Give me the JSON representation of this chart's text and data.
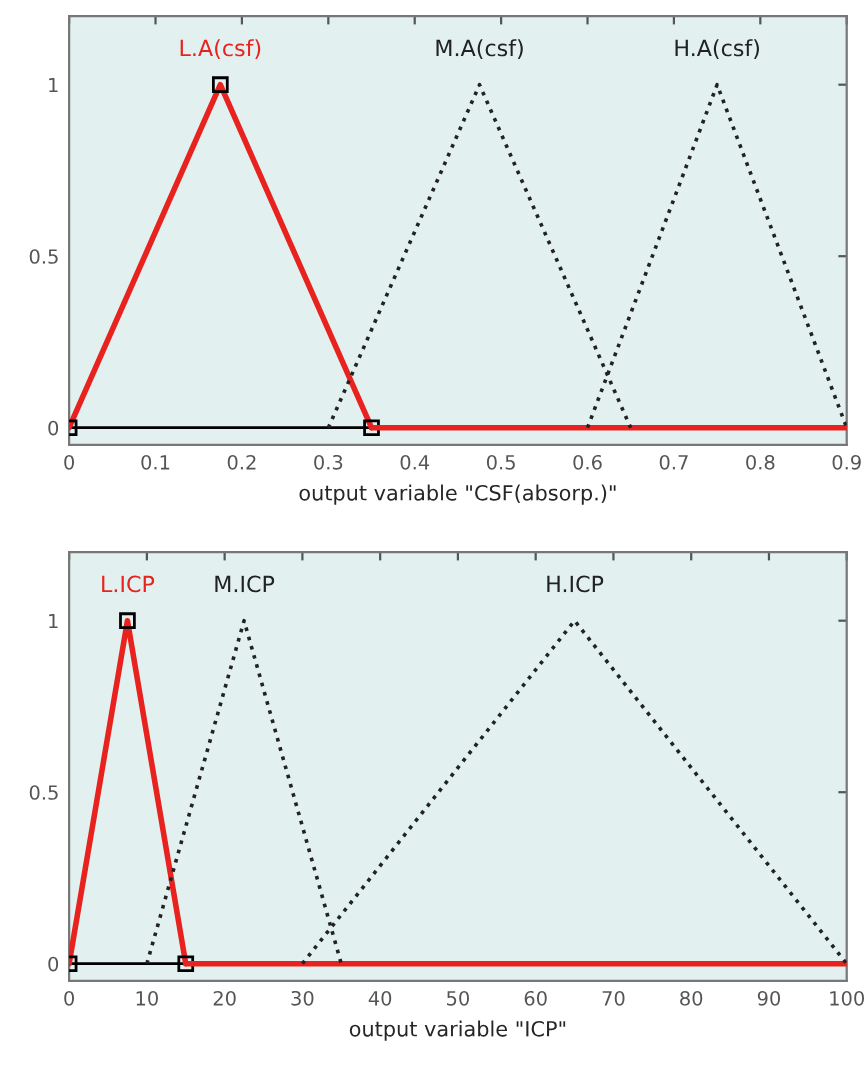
{
  "chart_data": [
    {
      "type": "line",
      "xlabel": "output variable \"CSF(absorp.)\"",
      "xlim": [
        0,
        0.9
      ],
      "xticks": [
        0,
        0.1,
        0.2,
        0.3,
        0.4,
        0.5,
        0.6,
        0.7,
        0.8,
        0.9
      ],
      "ylim": [
        -0.05,
        1.2
      ],
      "yticks": [
        0,
        0.5,
        1
      ],
      "grid": false,
      "ref_lines": [
        {
          "axis": "y",
          "value": 0,
          "color": "#000000"
        }
      ],
      "series": [
        {
          "name": "L.A(csf)",
          "color": "#e8221e",
          "x": [
            0,
            0.175,
            0.35
          ],
          "values": [
            0,
            1,
            0
          ],
          "line_style": "solid",
          "marker": "square"
        },
        {
          "color": "#e8221e",
          "x": [
            0.35,
            0.9
          ],
          "values": [
            0,
            0
          ],
          "line_style": "solid"
        },
        {
          "name": "M.A(csf)",
          "color": "#222222",
          "x": [
            0.3,
            0.475,
            0.65
          ],
          "values": [
            0,
            1,
            0
          ],
          "line_style": "dotted"
        },
        {
          "name": "H.A(csf)",
          "color": "#222222",
          "x": [
            0.6,
            0.75,
            0.9
          ],
          "values": [
            0,
            1,
            0
          ],
          "line_style": "dotted"
        }
      ]
    },
    {
      "type": "line",
      "xlabel": "output variable \"ICP\"",
      "xlim": [
        0,
        100
      ],
      "xticks": [
        0,
        10,
        20,
        30,
        40,
        50,
        60,
        70,
        80,
        90,
        100
      ],
      "ylim": [
        -0.05,
        1.2
      ],
      "yticks": [
        0,
        0.5,
        1
      ],
      "grid": false,
      "ref_lines": [
        {
          "axis": "y",
          "value": 0,
          "color": "#000000"
        }
      ],
      "series": [
        {
          "name": "L.ICP",
          "color": "#e8221e",
          "x": [
            0,
            7.5,
            15
          ],
          "values": [
            0,
            1,
            0
          ],
          "line_style": "solid",
          "marker": "square"
        },
        {
          "color": "#e8221e",
          "x": [
            15,
            100
          ],
          "values": [
            0,
            0
          ],
          "line_style": "solid"
        },
        {
          "name": "M.ICP",
          "color": "#222222",
          "x": [
            10,
            22.5,
            35
          ],
          "values": [
            0,
            1,
            0
          ],
          "line_style": "dotted"
        },
        {
          "name": "H.ICP",
          "color": "#222222",
          "x": [
            30,
            65,
            100
          ],
          "values": [
            0,
            1,
            0
          ],
          "line_style": "dotted"
        }
      ]
    }
  ]
}
